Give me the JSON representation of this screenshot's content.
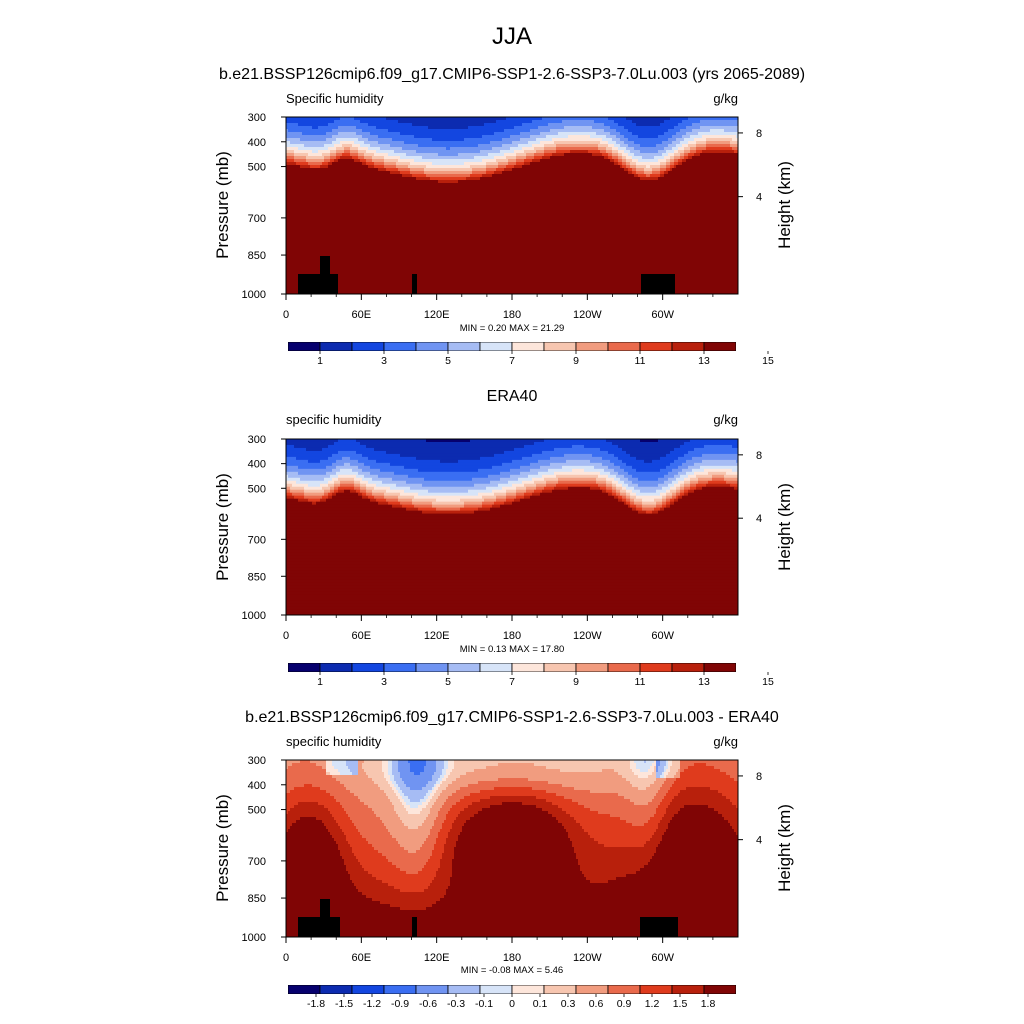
{
  "title": "JJA",
  "chart_data": [
    {
      "type": "heatmap",
      "title": "b.e21.BSSP126cmip6.f09_g17.CMIP6-SSP1-2.6-SSP3-7.0Lu.003 (yrs 2065-2089)",
      "left_label": "Specific humidity",
      "right_label": "g/kg",
      "ylabel": "Pressure (mb)",
      "ylabel_right": "Height (km)",
      "yticks": [
        "300",
        "400",
        "500",
        "700",
        "850",
        "1000"
      ],
      "yticks_right": [
        "8",
        "4"
      ],
      "xticks": [
        "0",
        "60E",
        "120E",
        "180",
        "120W",
        "60W"
      ],
      "stats": "MIN =   0.20  MAX =  21.29",
      "colorbar_labels": [
        "1",
        "3",
        "5",
        "7",
        "9",
        "11",
        "13",
        "15"
      ],
      "colorbar_colors": [
        "#06006e",
        "#0c2bb0",
        "#1346e0",
        "#3a6ef2",
        "#7094f2",
        "#a6bcf4",
        "#d7e4f8",
        "#fde6db",
        "#f7c6b0",
        "#f19c7f",
        "#e96a4c",
        "#df3b1d",
        "#b8200c",
        "#800505"
      ],
      "field": "model"
    },
    {
      "type": "heatmap",
      "title": "ERA40",
      "left_label": "specific humidity",
      "right_label": "g/kg",
      "ylabel": "Pressure (mb)",
      "ylabel_right": "Height (km)",
      "yticks": [
        "300",
        "400",
        "500",
        "700",
        "850",
        "1000"
      ],
      "yticks_right": [
        "8",
        "4"
      ],
      "xticks": [
        "0",
        "60E",
        "120E",
        "180",
        "120W",
        "60W"
      ],
      "stats": "MIN =   0.13  MAX =  17.80",
      "colorbar_labels": [
        "1",
        "3",
        "5",
        "7",
        "9",
        "11",
        "13",
        "15"
      ],
      "colorbar_colors": [
        "#06006e",
        "#0c2bb0",
        "#1346e0",
        "#3a6ef2",
        "#7094f2",
        "#a6bcf4",
        "#d7e4f8",
        "#fde6db",
        "#f7c6b0",
        "#f19c7f",
        "#e96a4c",
        "#df3b1d",
        "#b8200c",
        "#800505"
      ],
      "field": "obs"
    },
    {
      "type": "heatmap",
      "title": "b.e21.BSSP126cmip6.f09_g17.CMIP6-SSP1-2.6-SSP3-7.0Lu.003 - ERA40",
      "left_label": "specific humidity",
      "right_label": "g/kg",
      "ylabel": "Pressure (mb)",
      "ylabel_right": "Height (km)",
      "yticks": [
        "300",
        "400",
        "500",
        "700",
        "850",
        "1000"
      ],
      "yticks_right": [
        "8",
        "4"
      ],
      "xticks": [
        "0",
        "60E",
        "120E",
        "180",
        "120W",
        "60W"
      ],
      "stats": "MIN =  -0.08  MAX =   5.46",
      "colorbar_labels": [
        "-1.8",
        "-1.5",
        "-1.2",
        "-0.9",
        "-0.6",
        "-0.3",
        "-0.1",
        "0",
        "0.1",
        "0.3",
        "0.6",
        "0.9",
        "1.2",
        "1.5",
        "1.8"
      ],
      "colorbar_colors": [
        "#06006e",
        "#0c2bb0",
        "#1346e0",
        "#3a6ef2",
        "#7094f2",
        "#a6bcf4",
        "#d7e4f8",
        "#fde6db",
        "#f7c6b0",
        "#f19c7f",
        "#e96a4c",
        "#df3b1d",
        "#b8200c",
        "#800505"
      ],
      "field": "diff"
    }
  ]
}
